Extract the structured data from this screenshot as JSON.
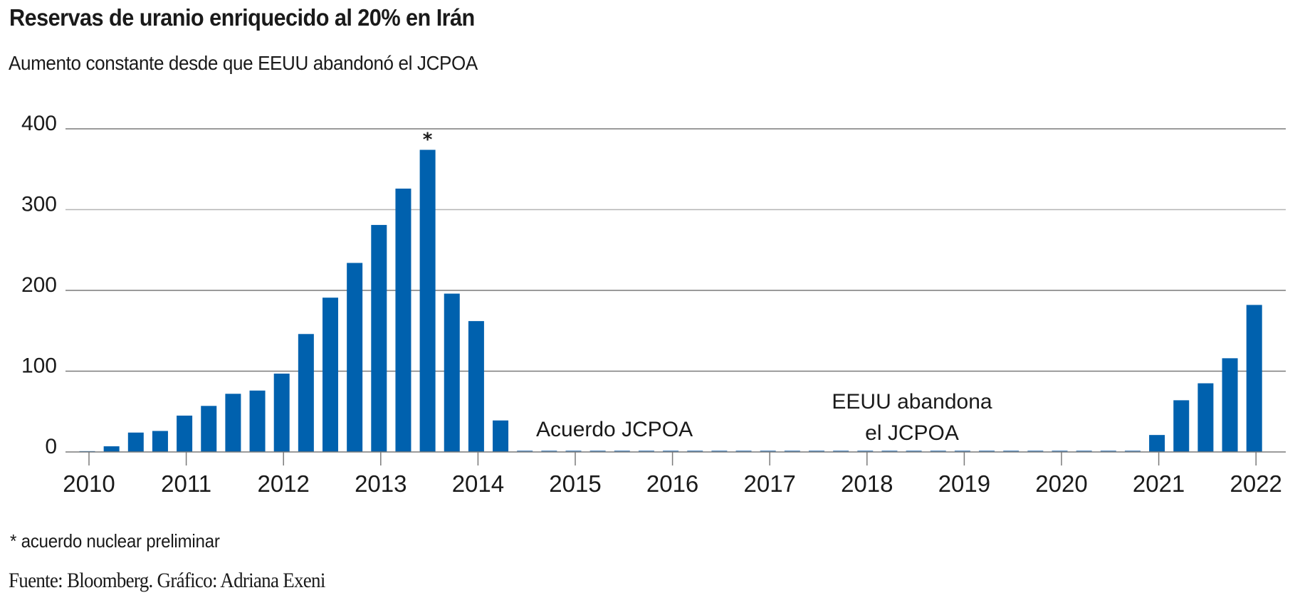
{
  "header": {
    "title": "Reservas de uranio enriquecido al 20% en Irán",
    "subtitle": "Aumento constante desde que EEUU abandonó el JCPOA"
  },
  "footer": {
    "footnote": "* acuerdo nuclear preliminar",
    "source": "Fuente: Bloomberg. Gráfico: Adriana Exeni"
  },
  "colors": {
    "bar": "#0061ae",
    "zero_bar": "#5b8fc2",
    "grid_major": "#7a7a7a",
    "grid_light": "#b5b5b5",
    "axis": "#7a7a7a",
    "text": "#1a1a1a"
  },
  "chart_data": {
    "type": "bar",
    "title": "Reservas de uranio enriquecido al 20% en Irán",
    "subtitle": "Aumento constante desde que EEUU abandonó el JCPOA",
    "xlabel": "",
    "ylabel": "",
    "ylim": [
      0,
      400
    ],
    "yticks": [
      0,
      100,
      200,
      300,
      400
    ],
    "ytick_labels": [
      "0",
      "100",
      "200",
      "300",
      "400"
    ],
    "grid": true,
    "frequency": "quarterly",
    "x_tick_labels": [
      "2010",
      "2011",
      "2012",
      "2013",
      "2014",
      "2015",
      "2016",
      "2017",
      "2018",
      "2019",
      "2020",
      "2021",
      "2022"
    ],
    "categories": [
      "2010 T1",
      "2010 T2",
      "2010 T3",
      "2010 T4",
      "2011 T1",
      "2011 T2",
      "2011 T3",
      "2011 T4",
      "2012 T1",
      "2012 T2",
      "2012 T3",
      "2012 T4",
      "2013 T1",
      "2013 T2",
      "2013 T3",
      "2013 T4",
      "2014 T1",
      "2014 T2",
      "2014 T3",
      "2014 T4",
      "2015 T1",
      "2015 T2",
      "2015 T3",
      "2015 T4",
      "2016 T1",
      "2016 T2",
      "2016 T3",
      "2016 T4",
      "2017 T1",
      "2017 T2",
      "2017 T3",
      "2017 T4",
      "2018 T1",
      "2018 T2",
      "2018 T3",
      "2018 T4",
      "2019 T1",
      "2019 T2",
      "2019 T3",
      "2019 T4",
      "2020 T1",
      "2020 T2",
      "2020 T3",
      "2020 T4",
      "2021 T1",
      "2021 T2",
      "2021 T3",
      "2021 T4",
      "2022 T1"
    ],
    "values": [
      1,
      7,
      24,
      26,
      45,
      57,
      72,
      76,
      97,
      146,
      191,
      234,
      281,
      326,
      374,
      196,
      162,
      39,
      0,
      0,
      0,
      0,
      0,
      0,
      0,
      0,
      0,
      0,
      0,
      0,
      0,
      0,
      0,
      0,
      0,
      0,
      0,
      0,
      0,
      0,
      0,
      0,
      0,
      0,
      21,
      64,
      85,
      116,
      182
    ],
    "markers": [
      {
        "category": "2013 T3",
        "label": "*",
        "meaning": "acuerdo nuclear preliminar"
      }
    ],
    "annotations": [
      {
        "text": "Acuerdo JCPOA",
        "near": "2015"
      },
      {
        "lines": [
          "EEUU abandona",
          "el JCPOA"
        ],
        "near": "2018"
      }
    ],
    "legend": "none"
  }
}
